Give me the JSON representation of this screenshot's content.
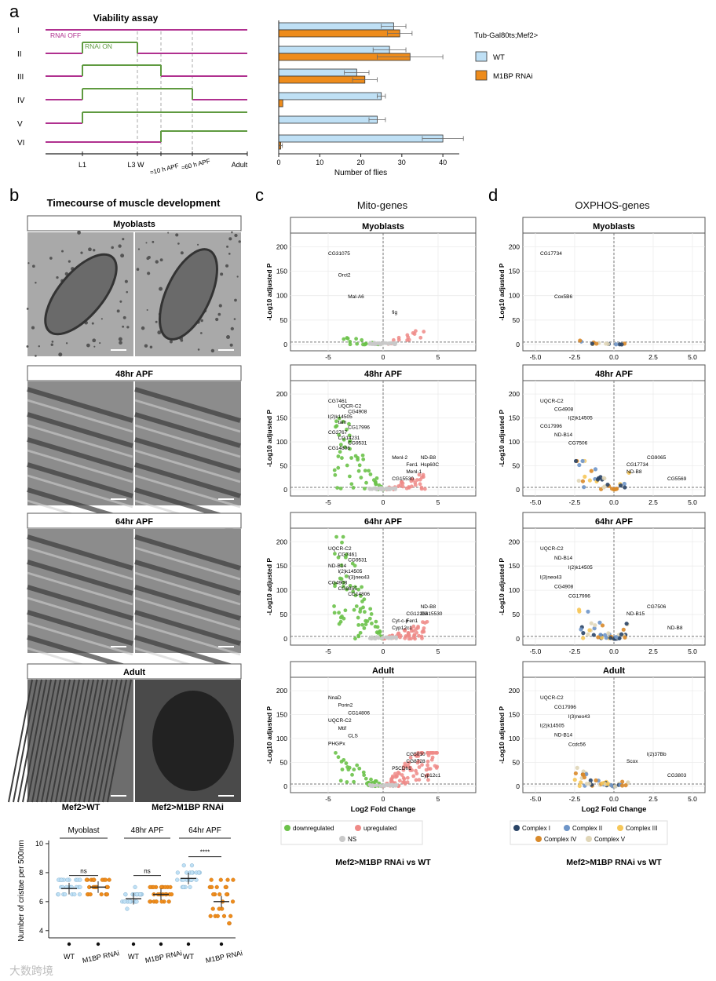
{
  "panels": {
    "a": "a",
    "b": "b",
    "c": "c",
    "d": "d"
  },
  "viability": {
    "title": "Viability assay",
    "rows": [
      "I",
      "II",
      "III",
      "IV",
      "V",
      "VI"
    ],
    "rnai_off": "RNAi OFF",
    "rnai_on": "RNAi ON",
    "stages": [
      "L1",
      "L3 W",
      "≈10 h APF",
      "≈60 h APF",
      "Adult"
    ],
    "genotype": "Tub-Gal80ts;Mef2>",
    "legend": [
      {
        "name": "WT",
        "color": "#bfe0f5"
      },
      {
        "name": "M1BP RNAi",
        "color": "#ee8c1c"
      }
    ],
    "colors": {
      "off": "#b0308f",
      "on": "#5f9a40"
    }
  },
  "chart_data": [
    {
      "type": "bar",
      "categories": [
        "I",
        "II",
        "III",
        "IV",
        "V",
        "VI"
      ],
      "series": [
        {
          "name": "WT",
          "values": [
            28,
            27,
            19,
            25,
            24,
            40
          ],
          "errors": [
            3,
            4,
            3,
            1,
            2,
            5
          ]
        },
        {
          "name": "M1BP RNAi",
          "values": [
            29.5,
            32,
            21,
            1,
            0,
            0.5
          ],
          "errors": [
            3,
            8,
            3,
            0,
            0,
            0.4
          ]
        }
      ],
      "xlabel": "Number of flies",
      "xlim": [
        0,
        45
      ],
      "ticks": [
        0,
        10,
        20,
        30,
        40
      ]
    },
    {
      "type": "scatter",
      "title": "Number of cristae per 500nm",
      "ylabel": "Number of cristae per 500nm",
      "ylim": [
        3.5,
        10
      ],
      "yticks": [
        4,
        6,
        8,
        10
      ],
      "groups": [
        {
          "label": "Myoblast",
          "stats": "ns",
          "wt_mean": 6.9,
          "rnai_mean": 7.0
        },
        {
          "label": "48hr APF",
          "stats": "ns",
          "wt_mean": 6.2,
          "rnai_mean": 6.5
        },
        {
          "label": "64hr APF",
          "stats": "****",
          "wt_mean": 7.6,
          "rnai_mean": 6.0
        }
      ],
      "xlabels": [
        "WT",
        "M1BP RNAi",
        "WT",
        "M1BP RNAi",
        "WT",
        "M1BP RNAi"
      ]
    }
  ],
  "em": {
    "title": "Timecourse of muscle development",
    "stages": [
      "Myoblasts",
      "48hr APF",
      "64hr APF",
      "Adult"
    ],
    "col_labels": [
      "Mef2>WT",
      "Mef2>M1BP RNAi"
    ]
  },
  "volcano_mito": {
    "title": "Mito-genes",
    "ylabel": "-Log10 adjusted P",
    "xlabel": "Log2 Fold Change",
    "facets": [
      "Myoblasts",
      "48hr APF",
      "64hr APF",
      "Adult"
    ],
    "yticks": [
      "0",
      "50",
      "100",
      "150",
      "200"
    ],
    "xticks": [
      "-5",
      "0",
      "5"
    ],
    "labels": [
      [
        "CG31075",
        "Orct2",
        "Mal-A6",
        "fig"
      ],
      [
        "CG7461",
        "UQCR-C2",
        "CG4908",
        "l(2)k14505",
        "tam",
        "CG17996",
        "CG2767",
        "CG14231",
        "CG9531",
        "CG14806",
        "Fen1",
        "ND-B8",
        "CG15530",
        "Menl-1",
        "Hsp60C",
        "Menl-2"
      ],
      [
        "UQCR-C2",
        "CG7461",
        "CG9531",
        "ND-B14",
        "l(2)k14505",
        "l(3)neo43",
        "CG4908",
        "CG9855",
        "CG14806",
        "Cyt-c-p",
        "CG12264",
        "ND-B8",
        "Cyp12c1",
        "Fen1",
        "CG15530"
      ],
      [
        "NnaD",
        "Porin2",
        "CG14806",
        "UQCR-C2",
        "Mtif",
        "CLS",
        "PHGPx",
        "CG5010",
        "Cyp12c1",
        "P5CDh1",
        "CG8728"
      ]
    ],
    "legend": [
      {
        "name": "downregulated",
        "color": "#6cc24a"
      },
      {
        "name": "upregulated",
        "color": "#ef8a87"
      },
      {
        "name": "NS",
        "color": "#c9c9c9"
      }
    ],
    "caption": "Mef2>M1BP RNAi vs WT"
  },
  "volcano_ox": {
    "title": "OXPHOS-genes",
    "ylabel": "-Log10 adjusted P",
    "xlabel": "Log2 Fold Change",
    "facets": [
      "Myoblasts",
      "48hr APF",
      "64hr APF",
      "Adult"
    ],
    "yticks": [
      "0",
      "50",
      "100",
      "150",
      "200"
    ],
    "xticks": [
      "-5.0",
      "-2.5",
      "0.0",
      "2.5",
      "5.0"
    ],
    "labels": [
      [
        "CG17734",
        "Cox5B6"
      ],
      [
        "UQCR-C2",
        "CG4908",
        "l(2)k14505",
        "CG17996",
        "ND-B14",
        "CG7506",
        "CG17734",
        "CG9065",
        "CG5569",
        "ND-B8"
      ],
      [
        "UQCR-C2",
        "ND-B14",
        "l(2)k14505",
        "l(3)neo43",
        "CG4908",
        "CG17996",
        "ND-B15",
        "CG7506",
        "ND-B8"
      ],
      [
        "UQCR-C2",
        "CG17996",
        "l(3)neo43",
        "l(2)k14505",
        "ND-B14",
        "Ccdc56",
        "Scox",
        "l(2)37Bb",
        "CG3803"
      ]
    ],
    "legend": [
      {
        "name": "Complex I",
        "color": "#2a4466"
      },
      {
        "name": "Complex II",
        "color": "#6e95c8"
      },
      {
        "name": "Complex III",
        "color": "#f6c759"
      },
      {
        "name": "Complex IV",
        "color": "#d98a2a"
      },
      {
        "name": "Complex V",
        "color": "#e0d6b8"
      }
    ],
    "caption": "Mef2>M1BP RNAi vs WT"
  },
  "watermark": "大数跨境"
}
